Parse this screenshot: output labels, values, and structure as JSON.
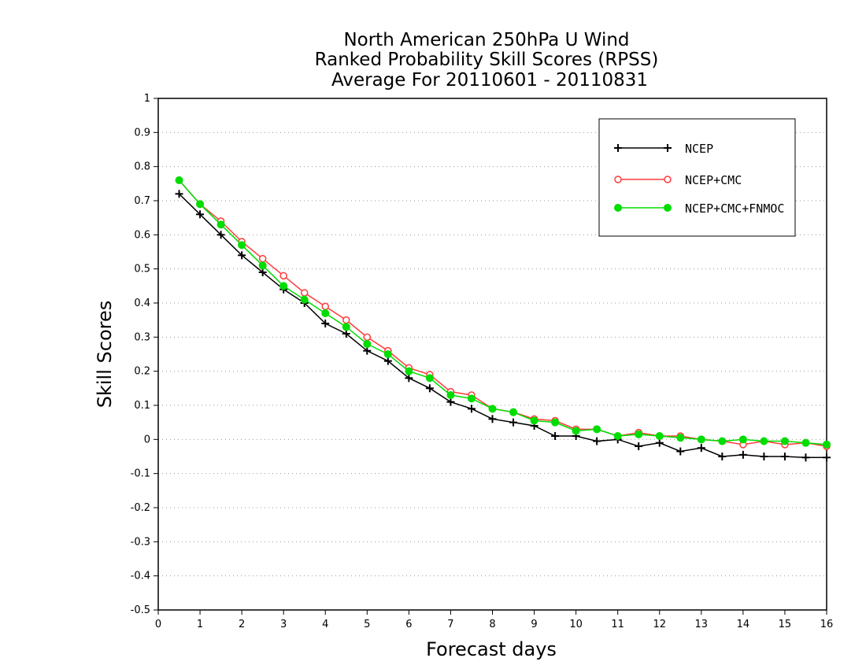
{
  "chart_data": {
    "type": "line",
    "title_lines": [
      "North American 250hPa U Wind",
      "Ranked Probability Skill Scores (RPSS)",
      "Average For 20110601 - 20110831"
    ],
    "xlabel": "Forecast days",
    "ylabel": "Skill Scores",
    "xlim": [
      0,
      16
    ],
    "ylim": [
      -0.5,
      1
    ],
    "xticks": [
      "0",
      "1",
      "2",
      "3",
      "4",
      "5",
      "6",
      "7",
      "8",
      "9",
      "10",
      "11",
      "12",
      "13",
      "14",
      "15",
      "16"
    ],
    "yticks": [
      "1",
      "0.9",
      "0.8",
      "0.7",
      "0.6",
      "0.5",
      "0.4",
      "0.3",
      "0.2",
      "0.1",
      "0",
      "-0.1",
      "-0.2",
      "-0.3",
      "-0.4",
      "-0.5"
    ],
    "grid": "dotted",
    "legend_position": "top-right",
    "x": [
      0.5,
      1,
      1.5,
      2,
      2.5,
      3,
      3.5,
      4,
      4.5,
      5,
      5.5,
      6,
      6.5,
      7,
      7.5,
      8,
      8.5,
      9,
      9.5,
      10,
      10.5,
      11,
      11.5,
      12,
      12.5,
      13,
      13.5,
      14,
      14.5,
      15,
      15.5,
      16
    ],
    "series": [
      {
        "name": "NCEP",
        "color": "#000000",
        "marker": "plus",
        "values": [
          0.72,
          0.66,
          0.6,
          0.54,
          0.49,
          0.44,
          0.4,
          0.34,
          0.31,
          0.26,
          0.23,
          0.18,
          0.15,
          0.11,
          0.09,
          0.06,
          0.05,
          0.04,
          0.01,
          0.01,
          -0.005,
          0.0,
          -0.02,
          -0.01,
          -0.035,
          -0.025,
          -0.05,
          -0.045,
          -0.05,
          -0.05,
          -0.053,
          -0.053
        ]
      },
      {
        "name": "NCEP+CMC",
        "color": "#ff3b3b",
        "marker": "open-circle",
        "values": [
          0.76,
          0.69,
          0.64,
          0.58,
          0.53,
          0.48,
          0.43,
          0.39,
          0.35,
          0.3,
          0.26,
          0.21,
          0.19,
          0.14,
          0.13,
          0.09,
          0.08,
          0.06,
          0.055,
          0.03,
          0.03,
          0.01,
          0.02,
          0.01,
          0.01,
          0.0,
          -0.005,
          -0.015,
          -0.005,
          -0.015,
          -0.01,
          -0.02
        ]
      },
      {
        "name": "NCEP+CMC+FNMOC",
        "color": "#00dd00",
        "marker": "filled-circle",
        "values": [
          0.76,
          0.69,
          0.63,
          0.57,
          0.51,
          0.45,
          0.41,
          0.37,
          0.33,
          0.28,
          0.25,
          0.2,
          0.18,
          0.13,
          0.12,
          0.09,
          0.08,
          0.055,
          0.05,
          0.025,
          0.03,
          0.01,
          0.015,
          0.01,
          0.005,
          0.0,
          -0.005,
          0.0,
          -0.005,
          -0.005,
          -0.01,
          -0.015
        ]
      }
    ]
  }
}
